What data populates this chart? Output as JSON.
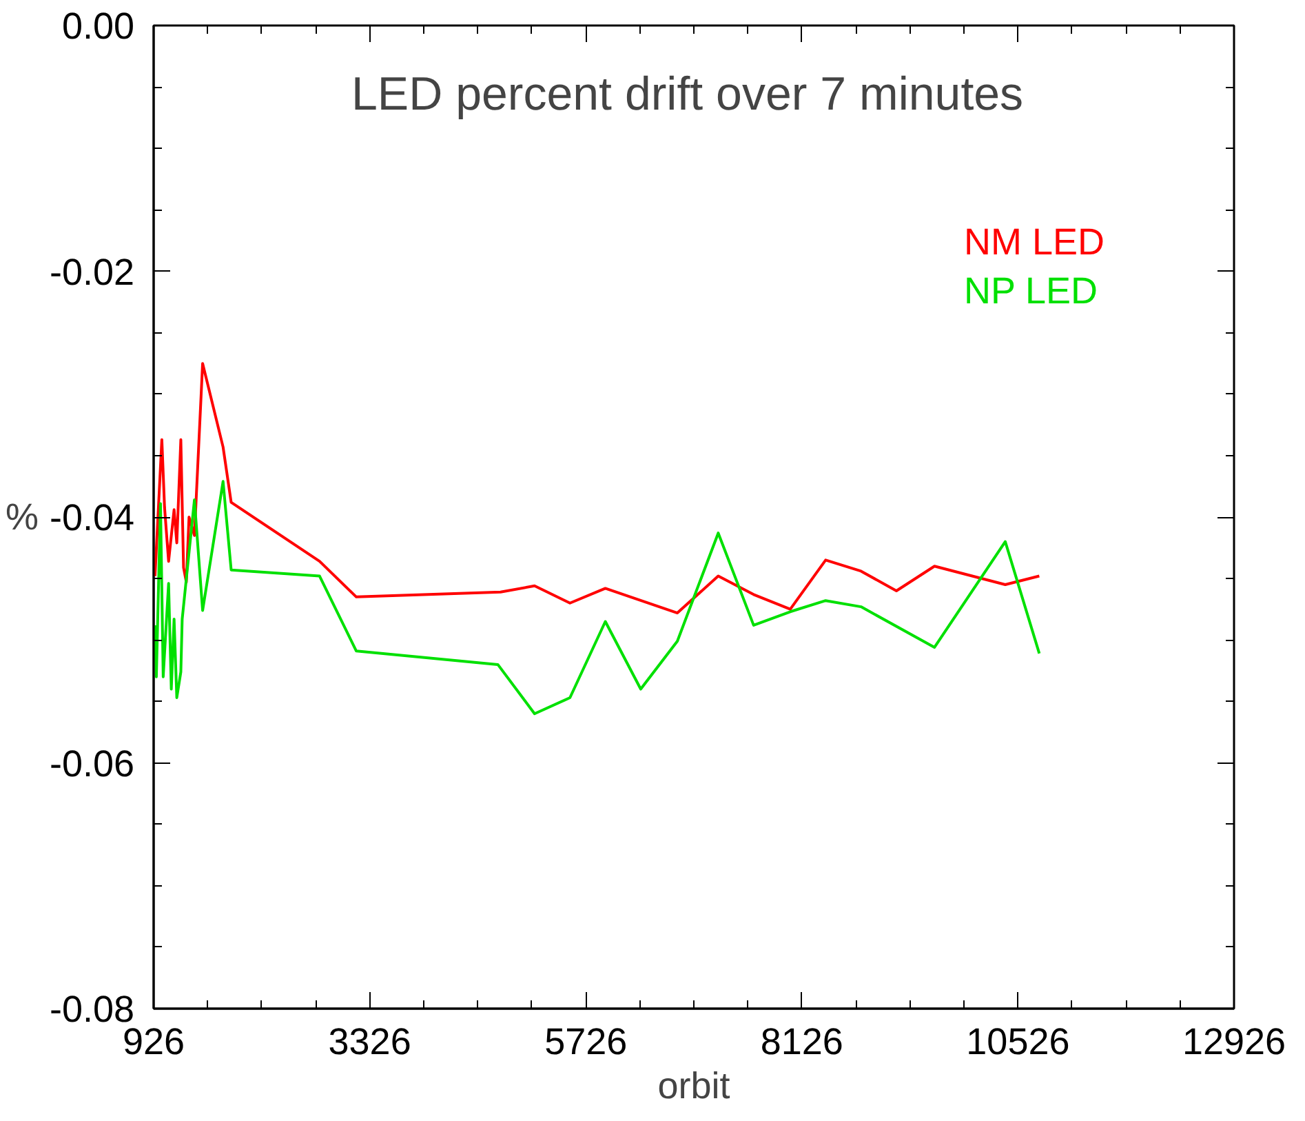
{
  "chart_data": {
    "type": "line",
    "title": "LED  percent drift over 7 minutes",
    "xlabel": "orbit",
    "ylabel": "%",
    "xlim": [
      926,
      12926
    ],
    "xticks": [
      926,
      3326,
      5726,
      8126,
      10526,
      12926
    ],
    "ylim": [
      -0.08,
      0.0
    ],
    "yticks": [
      {
        "value": -0.08,
        "label": "-0.08"
      },
      {
        "value": -0.06,
        "label": "-0.06"
      },
      {
        "value": -0.04,
        "label": "-0.04"
      },
      {
        "value": -0.02,
        "label": "-0.02"
      },
      {
        "value": 0.0,
        "label": "0.00"
      }
    ],
    "grid": false,
    "legend": "top right",
    "series": [
      {
        "name": "NM  LED",
        "color": "#ff0000",
        "x": [
          941,
          1017,
          1047,
          1092,
          1153,
          1183,
          1228,
          1258,
          1289,
          1319,
          1379,
          1470,
          1697,
          1787,
          2769,
          3177,
          4779,
          5157,
          5550,
          5943,
          6743,
          7197,
          7590,
          7997,
          8390,
          8783,
          9176,
          9599,
          10385,
          10763
        ],
        "values": [
          -0.0448,
          -0.0337,
          -0.0392,
          -0.0436,
          -0.0394,
          -0.0421,
          -0.0337,
          -0.0441,
          -0.0453,
          -0.04,
          -0.0415,
          -0.0275,
          -0.0343,
          -0.0388,
          -0.0436,
          -0.0465,
          -0.0461,
          -0.0456,
          -0.047,
          -0.0458,
          -0.0478,
          -0.0448,
          -0.0463,
          -0.0475,
          -0.0435,
          -0.0444,
          -0.046,
          -0.044,
          -0.0455,
          -0.0448
        ]
      },
      {
        "name": "NP LED",
        "color": "#00e000",
        "x": [
          941,
          956,
          1002,
          1032,
          1092,
          1122,
          1153,
          1183,
          1228,
          1243,
          1379,
          1470,
          1697,
          1787,
          2769,
          3177,
          4749,
          5157,
          5550,
          5943,
          6336,
          6743,
          7197,
          7590,
          7997,
          8390,
          8783,
          9599,
          10385,
          10763
        ],
        "values": [
          -0.0488,
          -0.053,
          -0.0389,
          -0.053,
          -0.0454,
          -0.054,
          -0.0483,
          -0.0547,
          -0.0526,
          -0.0483,
          -0.0386,
          -0.0476,
          -0.0371,
          -0.0443,
          -0.0448,
          -0.0509,
          -0.052,
          -0.056,
          -0.0547,
          -0.0485,
          -0.054,
          -0.0501,
          -0.0413,
          -0.0488,
          -0.0477,
          -0.0468,
          -0.0473,
          -0.0506,
          -0.042,
          -0.0511
        ]
      }
    ]
  }
}
